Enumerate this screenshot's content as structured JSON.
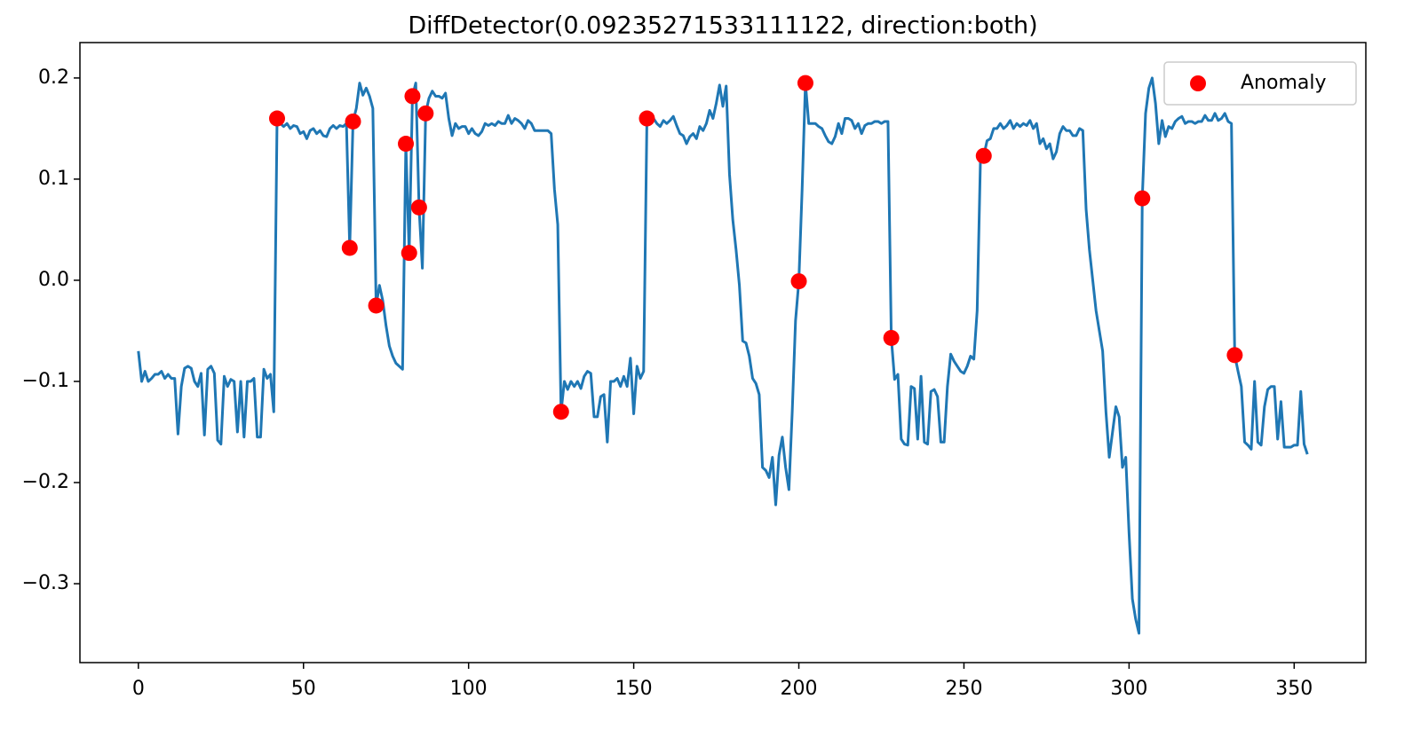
{
  "chart_data": {
    "type": "line",
    "title": "DiffDetector(0.09235271533111122, direction:both)",
    "xlim": [
      -17.7,
      371.7
    ],
    "ylim": [
      -0.378,
      0.235
    ],
    "xticks": [
      0,
      50,
      100,
      150,
      200,
      250,
      300,
      350
    ],
    "yticks": [
      {
        "value": -0.3,
        "label": "−0.3"
      },
      {
        "value": -0.2,
        "label": "−0.2"
      },
      {
        "value": -0.1,
        "label": "−0.1"
      },
      {
        "value": 0,
        "label": "0.0"
      },
      0.1,
      0.2
    ],
    "legend": "upper right",
    "series": [
      {
        "type": "line",
        "color": "#1f77b4",
        "x": [
          0,
          1,
          2,
          3,
          4,
          5,
          6,
          7,
          8,
          9,
          10,
          11,
          12,
          13,
          14,
          15,
          16,
          17,
          18,
          19,
          20,
          21,
          22,
          23,
          24,
          25,
          26,
          27,
          28,
          29,
          30,
          31,
          32,
          33,
          34,
          35,
          36,
          37,
          38,
          39,
          40,
          41,
          42,
          43,
          44,
          45,
          46,
          47,
          48,
          49,
          50,
          51,
          52,
          53,
          54,
          55,
          56,
          57,
          58,
          59,
          60,
          61,
          62,
          63,
          64,
          65,
          66,
          67,
          68,
          69,
          70,
          71,
          72,
          73,
          74,
          75,
          76,
          77,
          78,
          79,
          80,
          81,
          82,
          83,
          84,
          85,
          86,
          87,
          88,
          89,
          90,
          91,
          92,
          93,
          94,
          95,
          96,
          97,
          98,
          99,
          100,
          101,
          102,
          103,
          104,
          105,
          106,
          107,
          108,
          109,
          110,
          111,
          112,
          113,
          114,
          115,
          116,
          117,
          118,
          119,
          120,
          121,
          122,
          123,
          124,
          125,
          126,
          127,
          128,
          129,
          130,
          131,
          132,
          133,
          134,
          135,
          136,
          137,
          138,
          139,
          140,
          141,
          142,
          143,
          144,
          145,
          146,
          147,
          148,
          149,
          150,
          151,
          152,
          153,
          154,
          155,
          156,
          157,
          158,
          159,
          160,
          161,
          162,
          163,
          164,
          165,
          166,
          167,
          168,
          169,
          170,
          171,
          172,
          173,
          174,
          175,
          176,
          177,
          178,
          179,
          180,
          181,
          182,
          183,
          184,
          185,
          186,
          187,
          188,
          189,
          190,
          191,
          192,
          193,
          194,
          195,
          196,
          197,
          198,
          199,
          200,
          201,
          202,
          203,
          204,
          205,
          206,
          207,
          208,
          209,
          210,
          211,
          212,
          213,
          214,
          215,
          216,
          217,
          218,
          219,
          220,
          221,
          222,
          223,
          224,
          225,
          226,
          227,
          228,
          229,
          230,
          231,
          232,
          233,
          234,
          235,
          236,
          237,
          238,
          239,
          240,
          241,
          242,
          243,
          244,
          245,
          246,
          247,
          248,
          249,
          250,
          251,
          252,
          253,
          254,
          255,
          256,
          257,
          258,
          259,
          260,
          261,
          262,
          263,
          264,
          265,
          266,
          267,
          268,
          269,
          270,
          271,
          272,
          273,
          274,
          275,
          276,
          277,
          278,
          279,
          280,
          281,
          282,
          283,
          284,
          285,
          286,
          287,
          288,
          289,
          290,
          291,
          292,
          293,
          294,
          295,
          296,
          297,
          298,
          299,
          300,
          301,
          302,
          303,
          304,
          305,
          306,
          307,
          308,
          309,
          310,
          311,
          312,
          313,
          314,
          315,
          316,
          317,
          318,
          319,
          320,
          321,
          322,
          323,
          324,
          325,
          326,
          327,
          328,
          329,
          330,
          331,
          332,
          333,
          334,
          335,
          336,
          337,
          338,
          339,
          340,
          341,
          342,
          343,
          344,
          345,
          346,
          347,
          348,
          349,
          350,
          351,
          352,
          353,
          354
        ],
        "values": [
          -0.07,
          -0.1,
          -0.09,
          -0.1,
          -0.097,
          -0.093,
          -0.093,
          -0.09,
          -0.097,
          -0.093,
          -0.097,
          -0.097,
          -0.152,
          -0.105,
          -0.087,
          -0.085,
          -0.087,
          -0.1,
          -0.105,
          -0.092,
          -0.153,
          -0.088,
          -0.085,
          -0.092,
          -0.158,
          -0.162,
          -0.095,
          -0.105,
          -0.098,
          -0.1,
          -0.15,
          -0.1,
          -0.155,
          -0.1,
          -0.1,
          -0.097,
          -0.155,
          -0.155,
          -0.088,
          -0.097,
          -0.093,
          -0.13,
          0.16,
          0.155,
          0.152,
          0.155,
          0.15,
          0.153,
          0.152,
          0.145,
          0.147,
          0.14,
          0.148,
          0.15,
          0.145,
          0.148,
          0.143,
          0.142,
          0.15,
          0.153,
          0.15,
          0.153,
          0.152,
          0.155,
          0.032,
          0.157,
          0.17,
          0.195,
          0.183,
          0.19,
          0.182,
          0.17,
          -0.025,
          -0.005,
          -0.02,
          -0.045,
          -0.065,
          -0.075,
          -0.082,
          -0.085,
          -0.088,
          0.135,
          0.027,
          0.182,
          0.195,
          0.072,
          0.012,
          0.165,
          0.18,
          0.187,
          0.182,
          0.182,
          0.18,
          0.185,
          0.16,
          0.143,
          0.155,
          0.15,
          0.152,
          0.152,
          0.145,
          0.15,
          0.145,
          0.143,
          0.147,
          0.155,
          0.153,
          0.155,
          0.153,
          0.157,
          0.155,
          0.155,
          0.163,
          0.155,
          0.16,
          0.158,
          0.155,
          0.15,
          0.158,
          0.155,
          0.148,
          0.148,
          0.148,
          0.148,
          0.148,
          0.145,
          0.09,
          0.055,
          -0.13,
          -0.1,
          -0.108,
          -0.1,
          -0.105,
          -0.1,
          -0.107,
          -0.095,
          -0.09,
          -0.092,
          -0.135,
          -0.135,
          -0.115,
          -0.113,
          -0.16,
          -0.1,
          -0.1,
          -0.097,
          -0.105,
          -0.095,
          -0.105,
          -0.077,
          -0.132,
          -0.085,
          -0.097,
          -0.09,
          0.16,
          0.158,
          0.16,
          0.155,
          0.152,
          0.158,
          0.155,
          0.158,
          0.162,
          0.153,
          0.145,
          0.143,
          0.135,
          0.142,
          0.145,
          0.14,
          0.152,
          0.148,
          0.155,
          0.168,
          0.16,
          0.175,
          0.193,
          0.172,
          0.192,
          0.105,
          0.06,
          0.03,
          -0.005,
          -0.06,
          -0.062,
          -0.075,
          -0.097,
          -0.102,
          -0.113,
          -0.185,
          -0.188,
          -0.195,
          -0.175,
          -0.222,
          -0.173,
          -0.155,
          -0.185,
          -0.207,
          -0.13,
          -0.04,
          -0.001,
          0.09,
          0.195,
          0.155,
          0.155,
          0.155,
          0.152,
          0.15,
          0.143,
          0.137,
          0.135,
          0.142,
          0.155,
          0.145,
          0.16,
          0.16,
          0.158,
          0.15,
          0.155,
          0.145,
          0.153,
          0.155,
          0.155,
          0.157,
          0.157,
          0.155,
          0.157,
          0.157,
          -0.057,
          -0.098,
          -0.093,
          -0.157,
          -0.162,
          -0.163,
          -0.105,
          -0.107,
          -0.157,
          -0.095,
          -0.16,
          -0.162,
          -0.11,
          -0.108,
          -0.115,
          -0.16,
          -0.16,
          -0.105,
          -0.073,
          -0.08,
          -0.085,
          -0.09,
          -0.092,
          -0.085,
          -0.075,
          -0.078,
          -0.03,
          0.12,
          0.123,
          0.138,
          0.14,
          0.15,
          0.15,
          0.155,
          0.15,
          0.153,
          0.158,
          0.15,
          0.155,
          0.152,
          0.155,
          0.153,
          0.158,
          0.15,
          0.155,
          0.135,
          0.14,
          0.13,
          0.135,
          0.12,
          0.127,
          0.145,
          0.152,
          0.148,
          0.148,
          0.143,
          0.143,
          0.15,
          0.148,
          0.07,
          0.03,
          0.0,
          -0.03,
          -0.05,
          -0.07,
          -0.13,
          -0.175,
          -0.15,
          -0.125,
          -0.135,
          -0.185,
          -0.175,
          -0.25,
          -0.315,
          -0.335,
          -0.349,
          0.081,
          0.165,
          0.19,
          0.2,
          0.175,
          0.135,
          0.158,
          0.142,
          0.152,
          0.15,
          0.157,
          0.16,
          0.162,
          0.155,
          0.157,
          0.157,
          0.155,
          0.157,
          0.157,
          0.163,
          0.158,
          0.158,
          0.165,
          0.158,
          0.16,
          0.165,
          0.157,
          0.155,
          -0.074,
          -0.09,
          -0.105,
          -0.16,
          -0.163,
          -0.167,
          -0.1,
          -0.16,
          -0.163,
          -0.125,
          -0.108,
          -0.105,
          -0.105,
          -0.157,
          -0.12,
          -0.165,
          -0.165,
          -0.165,
          -0.163,
          -0.163,
          -0.11,
          -0.162,
          -0.172
        ]
      },
      {
        "type": "scatter",
        "name": "Anomaly",
        "color": "#ff0000",
        "x": [
          42,
          64,
          65,
          72,
          81,
          82,
          83,
          85,
          87,
          128,
          154,
          200,
          202,
          228,
          256,
          304,
          332
        ],
        "values": [
          0.16,
          0.032,
          0.157,
          -0.025,
          0.135,
          0.027,
          0.182,
          0.072,
          0.165,
          -0.13,
          0.16,
          -0.001,
          0.195,
          -0.057,
          0.123,
          0.081,
          -0.074
        ]
      }
    ]
  }
}
